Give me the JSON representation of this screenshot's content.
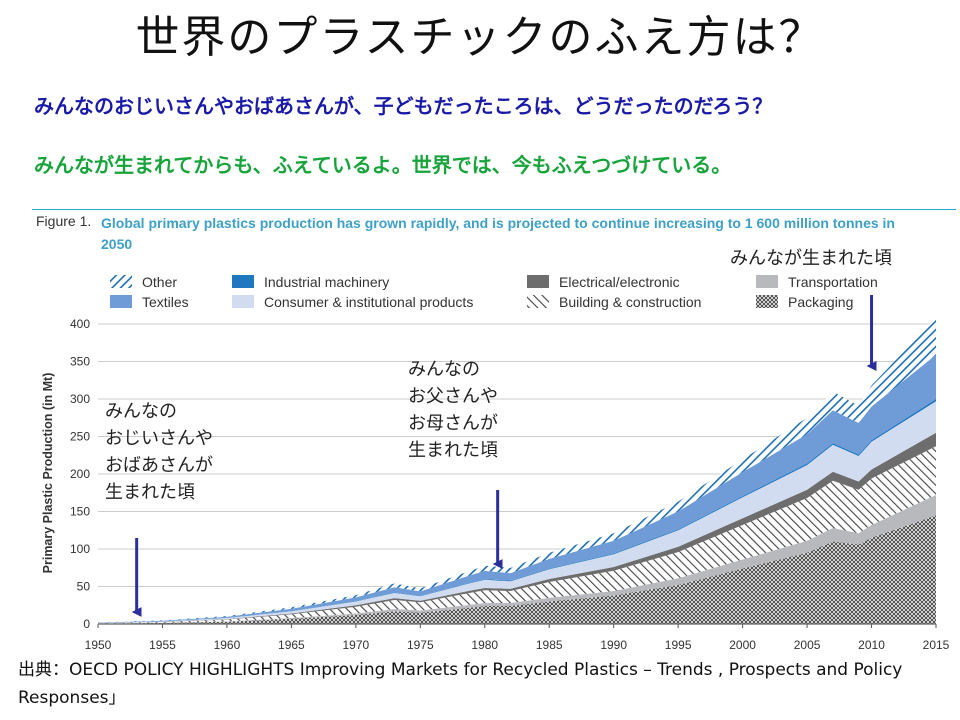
{
  "page": {
    "title": "世界のプラスチックのふえ方は？",
    "question_line": "みんなのおじいさんやおばあさんが、子どもだったころは、どうだったのだろう？",
    "answer_line": "みんなが生まれてからも、ふえているよ。世界では、今もふえつづけている。",
    "source": "出典：OECD POLICY HIGHLIGHTS Improving Markets for Recycled Plastics – Trends , Prospects and Policy Responses」"
  },
  "figure": {
    "label": "Figure 1.",
    "caption": "Global primary plastics production has grown rapidly, and is projected to continue increasing to 1 600 million tonnes in 2050"
  },
  "annotations": [
    {
      "id": "grandparents",
      "text": "みんなの\nおじいさんや\nおばあさんが\n生まれた頃",
      "year": 1953
    },
    {
      "id": "parents",
      "text": "みんなの\nお父さんや\nお母さんが\n生まれた頃",
      "year": 1981
    },
    {
      "id": "children",
      "text": "みんなが生まれた頃",
      "year": 2010
    }
  ],
  "colors": {
    "packaging": "#5a5a5a",
    "transportation": "#b7b9bd",
    "building": "#444444",
    "electrical": "#6d6d6d",
    "consumer": "#d2dcf0",
    "industrial": "#1f77c0",
    "textiles": "#6f9bd6",
    "other": "#1d6db2",
    "grid": "#cccccc",
    "arrow": "#2a2f9a",
    "plot_bg": "#ffffff"
  },
  "chart_data": {
    "type": "area",
    "stacked": true,
    "title": "Global primary plastics production",
    "ylabel": "Primary Plastic Production (in Mt)",
    "xlabel": "",
    "xlim": [
      1950,
      2015
    ],
    "ylim": [
      0,
      400
    ],
    "xticks": [
      1950,
      1955,
      1960,
      1965,
      1970,
      1975,
      1980,
      1985,
      1990,
      1995,
      2000,
      2005,
      2010,
      2015
    ],
    "yticks": [
      0,
      50,
      100,
      150,
      200,
      250,
      300,
      350,
      400
    ],
    "grid": true,
    "legend_position": "top",
    "x": [
      1950,
      1955,
      1960,
      1965,
      1970,
      1973,
      1975,
      1979,
      1980,
      1982,
      1985,
      1990,
      1995,
      2000,
      2005,
      2007,
      2009,
      2010,
      2015
    ],
    "series": [
      {
        "name": "Packaging",
        "key": "packaging",
        "pattern": "cross",
        "values": [
          0.5,
          1.5,
          3,
          7,
          12,
          17,
          15,
          22,
          24,
          24,
          30,
          38,
          52,
          74,
          95,
          110,
          106,
          115,
          145
        ]
      },
      {
        "name": "Transportation",
        "key": "transportation",
        "pattern": "solid",
        "values": [
          0.1,
          0.2,
          0.5,
          1,
          2,
          3,
          3,
          4,
          4,
          4,
          5,
          6,
          9,
          12,
          16,
          18,
          15,
          17,
          27
        ]
      },
      {
        "name": "Building & construction",
        "key": "building",
        "pattern": "hatch",
        "values": [
          0.5,
          1,
          2.5,
          5,
          9,
          12,
          11,
          16,
          17,
          16,
          21,
          27,
          35,
          46,
          57,
          63,
          58,
          62,
          65
        ]
      },
      {
        "name": "Electrical/electronic",
        "key": "electrical",
        "pattern": "solid",
        "values": [
          0.1,
          0.2,
          0.5,
          1,
          2,
          2.5,
          2,
          3,
          3,
          3,
          4,
          5,
          7,
          9,
          11,
          12,
          11,
          12,
          18
        ]
      },
      {
        "name": "Consumer & institutional products",
        "key": "consumer",
        "pattern": "solid",
        "values": [
          0.2,
          0.5,
          1.5,
          3,
          5,
          7,
          6,
          10,
          11,
          10,
          13,
          17,
          22,
          28,
          33,
          36,
          34,
          37,
          42
        ]
      },
      {
        "name": "Industrial machinery",
        "key": "industrial",
        "pattern": "solid",
        "values": [
          0.1,
          0.1,
          0.2,
          0.3,
          0.5,
          0.6,
          0.5,
          0.7,
          0.8,
          0.8,
          0.8,
          1,
          1.2,
          1.5,
          2,
          2,
          2,
          2,
          3
        ]
      },
      {
        "name": "Textiles",
        "key": "textiles",
        "pattern": "solid",
        "values": [
          0.3,
          0.8,
          1.5,
          3,
          5,
          7,
          6,
          10,
          11,
          10,
          13,
          17,
          24,
          32,
          39,
          44,
          42,
          45,
          59
        ]
      },
      {
        "name": "Other",
        "key": "other",
        "pattern": "diag",
        "values": [
          0.2,
          0.5,
          1,
          2,
          3,
          5,
          4,
          6,
          7,
          7,
          8,
          10,
          13,
          17,
          22,
          25,
          23,
          28,
          49
        ]
      }
    ],
    "legend_order": [
      "other",
      "textiles",
      "industrial",
      "consumer",
      "electrical",
      "building",
      "transportation",
      "packaging"
    ]
  }
}
